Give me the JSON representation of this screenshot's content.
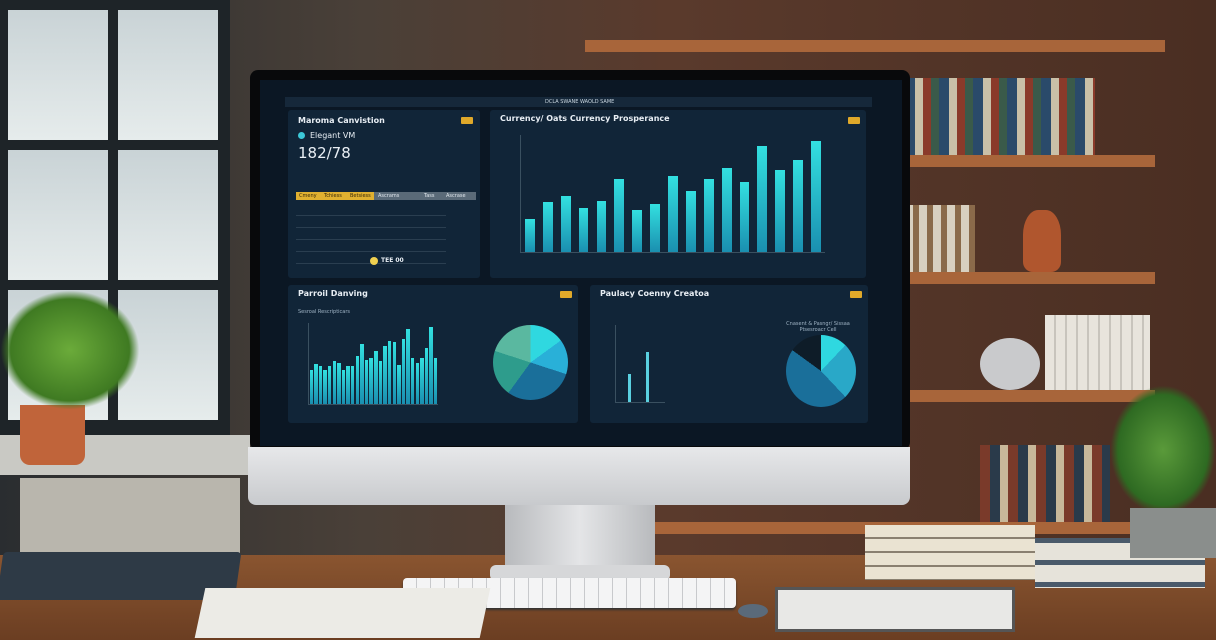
{
  "screen": {
    "topbar_title": "DCLA SWANE WAOLD SAME",
    "panel1": {
      "title": "Maroma Canvistion",
      "subtitle": "Elegant VM",
      "value": "182/78",
      "footer_value": "TEE 00",
      "table_header": [
        "Cmeny",
        "Tchiess",
        "Betsiess",
        "Ascrams",
        "Tass",
        "Ascrase"
      ]
    },
    "panel2": {
      "title": "Currency/ Oats Currency Prosperance",
      "bar_values": [
        30,
        45,
        50,
        40,
        46,
        66,
        38,
        43,
        68,
        55,
        66,
        76,
        63,
        95,
        74,
        83,
        100
      ]
    },
    "panel3": {
      "title": "Parroil Danving",
      "subtitle": "Sesroal Rescripticars",
      "bar_values": [
        40,
        47,
        44,
        40,
        44,
        50,
        48,
        40,
        44,
        45,
        56,
        70,
        51,
        54,
        62,
        50,
        68,
        74,
        72,
        46,
        76,
        88,
        54,
        48,
        54,
        66,
        90,
        54
      ]
    },
    "panel4": {
      "title": "Paulacy Coenny Creatoa",
      "pie_label": "Cnasent & Pasngr/ Sissaa Ptsesroacr Cell"
    }
  },
  "colors": {
    "accent": "#e0a92a",
    "bar": "#33e0e0",
    "screen_bg": "#0b1724"
  }
}
